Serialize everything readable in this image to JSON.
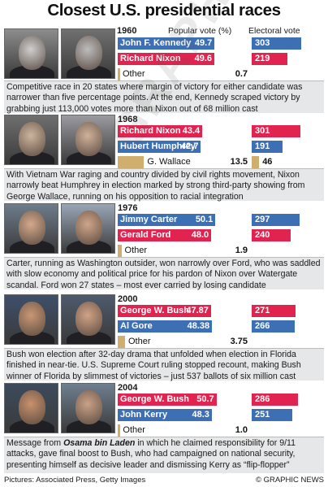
{
  "title": "Closest U.S. presidential races",
  "header": {
    "year": "1960",
    "popular_vote": "Popular vote (%)",
    "electoral_vote": "Electoral vote"
  },
  "chart_data": {
    "type": "bar",
    "title": "Closest U.S. presidential races",
    "races": [
      {
        "year": "1960",
        "candidates": [
          {
            "name": "John F. Kennedy",
            "party": "dem",
            "popular": 49.7,
            "popular_label": "49.7",
            "electoral": 303
          },
          {
            "name": "Richard Nixon",
            "party": "rep",
            "popular": 49.6,
            "popular_label": "49.6",
            "electoral": 219
          },
          {
            "name": "Other",
            "party": "oth",
            "popular": 0.7,
            "popular_label": "0.7",
            "electoral": null
          }
        ],
        "caption": "Competitive race in 20 states where margin of victory for either candidate was narrower than five percentage points. At the end, Kennedy scraped victory by grabbing just 113,000 votes more than Nixon out of 68 million cast"
      },
      {
        "year": "1968",
        "candidates": [
          {
            "name": "Richard Nixon",
            "party": "rep",
            "popular": 43.4,
            "popular_label": "43.4",
            "electoral": 301
          },
          {
            "name": "Hubert Humphrey",
            "party": "dem",
            "popular": 42.7,
            "popular_label": "42.7",
            "electoral": 191
          },
          {
            "name": "G. Wallace",
            "party": "oth",
            "popular": 13.5,
            "popular_label": "13.5",
            "electoral": 46
          }
        ],
        "caption": "With Vietnam War raging and country divided by civil rights movement, Nixon narrowly beat Humphrey in election marked by strong third-party showing from George Wallace, running on his opposition to racial integration"
      },
      {
        "year": "1976",
        "candidates": [
          {
            "name": "Jimmy Carter",
            "party": "dem",
            "popular": 50.1,
            "popular_label": "50.1",
            "electoral": 297
          },
          {
            "name": "Gerald Ford",
            "party": "rep",
            "popular": 48.0,
            "popular_label": "48.0",
            "electoral": 240
          },
          {
            "name": "Other",
            "party": "oth",
            "popular": 1.9,
            "popular_label": "1.9",
            "electoral": null
          }
        ],
        "caption": "Carter, running as Washington outsider, won narrowly over Ford, who was saddled with slow economy and political price for his pardon of Nixon over Watergate scandal. Ford won 27 states – most ever carried by losing candidate"
      },
      {
        "year": "2000",
        "candidates": [
          {
            "name": "George W. Bush",
            "party": "rep",
            "popular": 47.87,
            "popular_label": "47.87",
            "electoral": 271
          },
          {
            "name": "Al Gore",
            "party": "dem",
            "popular": 48.38,
            "popular_label": "48.38",
            "electoral": 266
          },
          {
            "name": "Other",
            "party": "oth",
            "popular": 3.75,
            "popular_label": "3.75",
            "electoral": null
          }
        ],
        "caption": "Bush won election after 32-day drama that unfolded when election in Florida finished in near-tie. U.S. Supreme Court ruling stopped recount, making Bush winner of Florida by slimmest of victories – just 537 ballots of six million cast"
      },
      {
        "year": "2004",
        "candidates": [
          {
            "name": "George W. Bush",
            "party": "rep",
            "popular": 50.7,
            "popular_label": "50.7",
            "electoral": 286
          },
          {
            "name": "John Kerry",
            "party": "dem",
            "popular": 48.3,
            "popular_label": "48.3",
            "electoral": 251
          },
          {
            "name": "Other",
            "party": "oth",
            "popular": 1.0,
            "popular_label": "1.0",
            "electoral": null
          }
        ],
        "caption_prefix": "Message from ",
        "caption_em": "Osama bin Laden",
        "caption": " in which he claimed responsibility for 9/11 attacks, gave final boost to Bush, who had campaigned on national security, presenting himself as decisive leader and dismissing Kerry as “flip-flopper”"
      }
    ],
    "popular_range": [
      0,
      60
    ],
    "electoral_range": [
      0,
      400
    ],
    "colors": {
      "dem": "#3d6fb5",
      "rep": "#e0244f",
      "oth": "#cfae6e"
    }
  },
  "footer": {
    "source": "Pictures: Associated Press, Getty Images",
    "credit": "© GRAPHIC NEWS"
  },
  "watermark": "GRAPHIC NEWS"
}
